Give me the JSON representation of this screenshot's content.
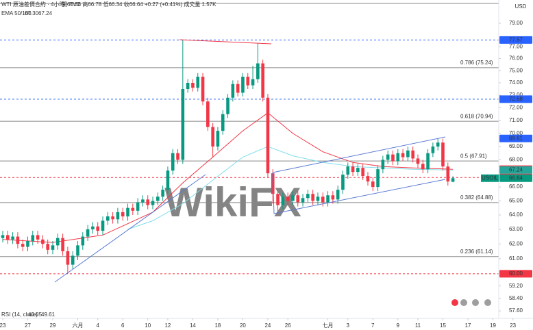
{
  "chart_data": {
    "type": "candlestick",
    "title": "WTI 原油差價合約 · 4小時 · TVC",
    "ohlc_text": "開66.38 高66.78 低66.34 收66.64 +0.27 (+0.41%) 成交量 1.57K",
    "indicator": {
      "name": "EMA 50/100",
      "values": [
        {
          "value": 67.3,
          "label": "67.30"
        },
        {
          "value": 67.24,
          "label": "67.24"
        }
      ],
      "colors": [
        "#f23645",
        "#26c6da"
      ]
    },
    "rsi": {
      "name": "RSI (14, close)",
      "values": [
        43.05,
        49.61
      ],
      "colors": [
        "#7e57c2",
        "#f9a825"
      ]
    },
    "currency": "USD",
    "watermark": "WikiFX",
    "up_color": "#089981",
    "down_color": "#f23645",
    "log_scale": true,
    "ylim": [
      57.13,
      81.05
    ],
    "yticks": [
      {
        "value": 79,
        "label": "79.00"
      },
      {
        "value": 77,
        "label": "77.00"
      },
      {
        "value": 76,
        "label": "76.00"
      },
      {
        "value": 75,
        "label": "75.00"
      },
      {
        "value": 74,
        "label": "74.00"
      },
      {
        "value": 73,
        "label": "73.00"
      },
      {
        "value": 72,
        "label": "72.00"
      },
      {
        "value": 71,
        "label": "71.00"
      },
      {
        "value": 70,
        "label": "70.00"
      },
      {
        "value": 69,
        "label": "69.00"
      },
      {
        "value": 68,
        "label": "68.00"
      },
      {
        "value": 66,
        "label": "66.00"
      },
      {
        "value": 65,
        "label": "65.00"
      },
      {
        "value": 64,
        "label": "64.00"
      },
      {
        "value": 63,
        "label": "63.00"
      },
      {
        "value": 62,
        "label": "62.00"
      },
      {
        "value": 61,
        "label": "61.00"
      },
      {
        "value": 59.2,
        "label": "59.20"
      },
      {
        "value": 58.4,
        "label": "58.40"
      },
      {
        "value": 57.6,
        "label": "57.60"
      }
    ],
    "xlim": [
      0,
      103
    ],
    "xticks": [
      {
        "value": 0,
        "label": "23"
      },
      {
        "value": 5,
        "label": "27"
      },
      {
        "value": 10,
        "label": "29"
      },
      {
        "value": 15,
        "label": "六月"
      },
      {
        "value": 19,
        "label": "4"
      },
      {
        "value": 24,
        "label": "6"
      },
      {
        "value": 29,
        "label": "10"
      },
      {
        "value": 33,
        "label": "12"
      },
      {
        "value": 38,
        "label": "14"
      },
      {
        "value": 43,
        "label": "18"
      },
      {
        "value": 48,
        "label": "20"
      },
      {
        "value": 53,
        "label": "24"
      },
      {
        "value": 57,
        "label": "26"
      },
      {
        "value": 65,
        "label": "七月"
      },
      {
        "value": 69,
        "label": "3"
      },
      {
        "value": 74,
        "label": "7"
      },
      {
        "value": 79,
        "label": "9"
      },
      {
        "value": 83,
        "label": "11"
      },
      {
        "value": 88,
        "label": "15"
      },
      {
        "value": 93,
        "label": "17"
      },
      {
        "value": 98,
        "label": "19"
      },
      {
        "value": 102,
        "label": "23"
      }
    ],
    "candles": {
      "open": [
        62.4,
        62.6,
        62.3,
        62.5,
        62.0,
        61.8,
        62.2,
        62.6,
        62.3,
        62.0,
        61.6,
        61.9,
        62.4,
        61.5,
        60.6,
        61.2,
        61.9,
        62.5,
        63.0,
        63.2,
        62.9,
        63.6,
        63.9,
        63.7,
        64.2,
        63.9,
        64.5,
        64.3,
        64.9,
        65.1,
        64.7,
        65.0,
        65.3,
        65.8,
        67.2,
        68.5,
        68.0,
        73.5,
        74.0,
        73.6,
        74.5,
        72.5,
        70.5,
        69.0,
        70.2,
        71.5,
        72.8,
        73.9,
        73.2,
        74.5,
        73.8,
        74.3,
        75.6,
        72.8,
        67.0,
        65.5,
        64.7,
        65.3,
        65.0,
        65.4,
        64.9,
        65.2,
        65.5,
        65.0,
        65.3,
        64.9,
        65.4,
        65.1,
        65.8,
        66.9,
        67.5,
        67.1,
        67.4,
        66.8,
        66.4,
        66.0,
        67.3,
        68.0,
        68.4,
        67.9,
        68.5,
        68.2,
        68.7,
        68.1,
        67.7,
        67.3,
        68.5,
        69.0,
        69.3,
        67.5,
        66.38
      ],
      "high": [
        62.9,
        62.9,
        62.8,
        62.8,
        62.3,
        62.5,
        62.9,
        62.9,
        62.6,
        62.3,
        62.2,
        62.7,
        62.7,
        61.8,
        61.5,
        62.2,
        62.8,
        63.3,
        63.5,
        63.5,
        63.9,
        64.2,
        64.2,
        64.5,
        64.5,
        64.8,
        64.8,
        65.2,
        65.4,
        65.4,
        65.3,
        65.6,
        66.1,
        67.5,
        68.8,
        68.8,
        77.6,
        74.3,
        74.3,
        74.8,
        74.8,
        72.8,
        70.8,
        70.5,
        71.8,
        73.1,
        74.2,
        74.2,
        74.8,
        74.8,
        75.4,
        77.3,
        75.9,
        73.1,
        67.3,
        65.8,
        65.6,
        65.6,
        65.7,
        65.7,
        65.5,
        65.8,
        65.8,
        65.6,
        65.6,
        65.7,
        65.7,
        66.1,
        67.2,
        67.8,
        67.8,
        67.7,
        67.7,
        67.1,
        66.7,
        67.6,
        68.3,
        68.7,
        68.7,
        68.8,
        68.8,
        69.0,
        69.0,
        68.4,
        68.0,
        68.8,
        69.3,
        69.61,
        69.6,
        67.8,
        66.78
      ],
      "low": [
        62.1,
        62.0,
        62.0,
        61.7,
        61.5,
        61.5,
        61.9,
        62.0,
        61.7,
        61.3,
        61.3,
        61.6,
        61.2,
        60.0,
        60.3,
        60.9,
        61.6,
        62.2,
        62.7,
        62.6,
        62.6,
        63.3,
        63.4,
        63.4,
        63.6,
        63.6,
        64.0,
        64.0,
        64.6,
        64.4,
        64.4,
        64.7,
        65.0,
        65.5,
        66.9,
        67.7,
        67.7,
        73.2,
        73.3,
        73.3,
        72.2,
        70.2,
        68.2,
        68.7,
        69.9,
        71.2,
        72.5,
        72.9,
        72.9,
        73.5,
        73.5,
        74.0,
        72.5,
        66.7,
        64.8,
        64.1,
        64.4,
        64.7,
        64.7,
        64.6,
        64.6,
        64.9,
        64.7,
        64.7,
        64.6,
        64.6,
        64.8,
        64.8,
        65.5,
        66.6,
        66.8,
        66.8,
        66.5,
        66.1,
        65.7,
        65.7,
        67.0,
        67.7,
        67.6,
        67.6,
        67.9,
        67.9,
        67.8,
        67.4,
        67.0,
        67.0,
        68.2,
        68.7,
        67.2,
        66.1,
        66.34
      ],
      "close": [
        62.6,
        62.3,
        62.5,
        62.0,
        61.8,
        62.2,
        62.6,
        62.3,
        62.0,
        61.6,
        61.9,
        62.4,
        61.5,
        60.6,
        61.2,
        61.9,
        62.5,
        63.0,
        63.2,
        62.9,
        63.6,
        63.9,
        63.7,
        64.2,
        63.9,
        64.5,
        64.3,
        64.9,
        65.1,
        64.7,
        65.0,
        65.3,
        65.8,
        67.2,
        68.5,
        68.0,
        73.5,
        74.0,
        73.6,
        74.5,
        72.5,
        70.5,
        69.0,
        70.2,
        71.5,
        72.8,
        73.9,
        73.2,
        74.5,
        73.8,
        74.3,
        75.6,
        72.8,
        67.0,
        65.5,
        64.7,
        65.3,
        65.0,
        65.4,
        64.9,
        65.2,
        65.5,
        65.0,
        65.3,
        64.9,
        65.4,
        65.1,
        65.8,
        66.9,
        67.5,
        67.1,
        67.4,
        66.8,
        66.4,
        66.0,
        67.3,
        68.0,
        68.4,
        67.9,
        68.5,
        68.2,
        68.7,
        68.1,
        67.7,
        67.3,
        68.5,
        69.0,
        69.3,
        67.5,
        66.4,
        66.64
      ]
    },
    "series": [
      {
        "name": "EMA 50",
        "color": "#f23645",
        "x": [
          0,
          10,
          20,
          30,
          36,
          42,
          48,
          53,
          58,
          64,
          70,
          76,
          82,
          90
        ],
        "values": [
          62.3,
          62.1,
          62.6,
          64.2,
          66.3,
          68.2,
          70.2,
          71.6,
          70.0,
          68.6,
          67.8,
          67.5,
          67.4,
          67.3
        ]
      },
      {
        "name": "EMA 100",
        "color": "#80deea",
        "x": [
          25,
          30,
          36,
          42,
          48,
          53,
          58,
          64,
          70,
          76,
          82,
          90
        ],
        "values": [
          63.0,
          63.6,
          64.8,
          66.5,
          68.2,
          69.0,
          68.3,
          67.8,
          67.5,
          67.4,
          67.3,
          67.24
        ]
      }
    ],
    "fib_levels": [
      {
        "value": 75.24,
        "label": "0.786 (75.24)"
      },
      {
        "value": 70.94,
        "label": "0.618 (70.94)"
      },
      {
        "value": 67.91,
        "label": "0.5 (67.91)"
      },
      {
        "value": 64.88,
        "label": "0.382 (64.88)"
      },
      {
        "value": 61.14,
        "label": "0.236 (61.14)"
      }
    ],
    "price_tags": [
      {
        "value": 77.57,
        "color": "#2962ff",
        "dashed": true
      },
      {
        "value": 72.68,
        "color": "#2962ff",
        "dashed": true
      },
      {
        "value": 69.61,
        "color": "#2962ff",
        "dashed": false
      },
      {
        "value": 67.3,
        "label": "67.30",
        "color": "#f23645",
        "dashed": false
      },
      {
        "value": 67.24,
        "color": "#26a69a",
        "dashed": false
      },
      {
        "value": 66.69,
        "color": "#f23645",
        "dashed": true
      },
      {
        "value": 66.64,
        "color": "#089981",
        "dashed": false,
        "symbol": "USOIL"
      },
      {
        "value": 60,
        "label": "60.00",
        "color": "#f23645",
        "dashed": true
      }
    ]
  }
}
